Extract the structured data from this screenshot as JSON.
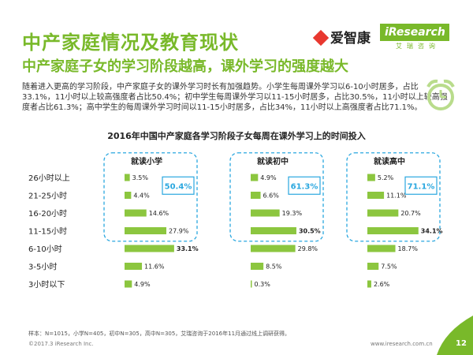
{
  "header": {
    "title": "中产家庭情况及教育现状",
    "subtitle": "中产家庭子女的学习阶段越高，课外学习的强度越大",
    "intro": "随着进入更高的学习阶段，中产家庭子女的课外学习时长有加强趋势。小学生每周课外学习以6-10小时居多，占比33.1%，11小时以上较高强度者占比50.4%；初中学生每周课外学习以11-15小时居多，占比30.5%，11小时以上较高强度者占比61.3%；高中学生的每周课外学习时间以11-15小时居多，占比34%，11小时以上高强度者占比71.1%。"
  },
  "logos": {
    "aizhikang": "爱智康",
    "iresearch": "iResearch",
    "iresearch_cn": "艾瑞咨询"
  },
  "colors": {
    "accent": "#79b92a",
    "bar": "#8cc63f",
    "frame": "#2aa7df"
  },
  "icons": [
    "alarm-clock-icon",
    "leaf-corner-icon"
  ],
  "chart_data": {
    "type": "bar",
    "title": "2016年中国中产家庭各学习阶段子女每周在课外学习上的时间投入",
    "categories": [
      "26小时以上",
      "21-25小时",
      "16-20小时",
      "11-15小时",
      "6-10小时",
      "3-5小时",
      "3小时以下"
    ],
    "series": [
      {
        "name": "就读小学",
        "values": [
          3.5,
          4.4,
          14.6,
          27.9,
          33.1,
          11.6,
          4.9
        ],
        "highlight": "50.4%",
        "bold_index": 4
      },
      {
        "name": "就读初中",
        "values": [
          4.9,
          6.6,
          19.3,
          30.5,
          29.8,
          8.5,
          0.3
        ],
        "highlight": "61.3%",
        "bold_index": 3
      },
      {
        "name": "就读高中",
        "values": [
          5.2,
          11.1,
          20.7,
          34.1,
          18.7,
          7.5,
          2.6
        ],
        "highlight": "71.1%",
        "bold_index": 3
      }
    ],
    "unit": "%",
    "highlight_group": "11小时以上"
  },
  "footer": {
    "note": "样本：N=1015，小学N=405，初中N=305，高中N=305，艾瑞咨询于2016年11月通过线上调研获得。",
    "copyright": "©2017.3  iResearch Inc.",
    "site": "www.iresearch.com.cn",
    "page": "12"
  }
}
